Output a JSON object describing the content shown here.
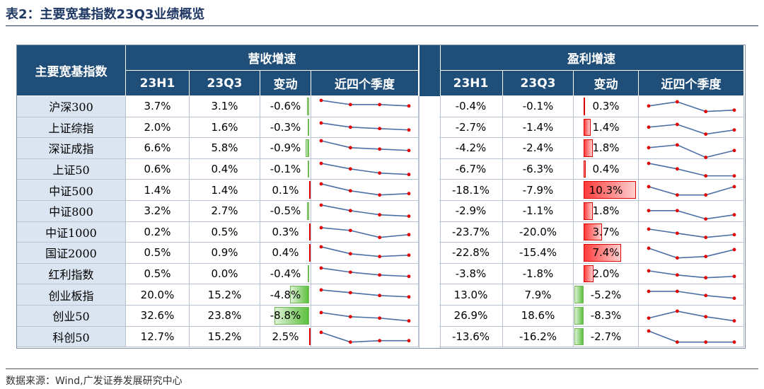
{
  "title": "表2：主要宽基指数23Q3业绩概览",
  "source": "数据来源：Wind,广发证券发展研究中心",
  "headers": {
    "index_col": "主要宽基指数",
    "rev_group": "营收增速",
    "profit_group": "盈利增速",
    "h1": "23H1",
    "q3": "23Q3",
    "change": "变动",
    "recent4": "近四个季度"
  },
  "rows": [
    {
      "name": "沪深300",
      "rev_h1": "3.7%",
      "rev_q3": "3.1%",
      "rev_chg": "-0.6%",
      "rev_chg_val": -0.6,
      "rev_trend": [
        3.2,
        2.9,
        2.9,
        2.8
      ],
      "pro_h1": "-0.4%",
      "pro_q3": "-0.1%",
      "pro_chg": "0.3%",
      "pro_chg_val": 0.3,
      "pro_trend": [
        2.8,
        3.1,
        2.4,
        2.5
      ]
    },
    {
      "name": "上证综指",
      "rev_h1": "2.0%",
      "rev_q3": "1.6%",
      "rev_chg": "-0.3%",
      "rev_chg_val": -0.3,
      "rev_trend": [
        3.1,
        2.8,
        2.7,
        2.6
      ],
      "pro_h1": "-2.7%",
      "pro_q3": "-1.4%",
      "pro_chg": "1.4%",
      "pro_chg_val": 1.4,
      "pro_trend": [
        2.8,
        3.0,
        2.3,
        2.6
      ]
    },
    {
      "name": "深证成指",
      "rev_h1": "6.6%",
      "rev_q3": "5.8%",
      "rev_chg": "-0.9%",
      "rev_chg_val": -0.9,
      "rev_trend": [
        3.3,
        2.8,
        2.7,
        2.6
      ],
      "pro_h1": "-4.2%",
      "pro_q3": "-2.4%",
      "pro_chg": "1.8%",
      "pro_chg_val": 1.8,
      "pro_trend": [
        2.8,
        3.0,
        2.1,
        2.6
      ]
    },
    {
      "name": "上证50",
      "rev_h1": "0.6%",
      "rev_q3": "0.4%",
      "rev_chg": "-0.1%",
      "rev_chg_val": -0.1,
      "rev_trend": [
        3.2,
        2.8,
        2.5,
        2.4
      ],
      "pro_h1": "-6.7%",
      "pro_q3": "-6.3%",
      "pro_chg": "0.4%",
      "pro_chg_val": 0.4,
      "pro_trend": [
        3.2,
        2.8,
        2.3,
        2.3
      ]
    },
    {
      "name": "中证500",
      "rev_h1": "1.4%",
      "rev_q3": "1.4%",
      "rev_chg": "0.1%",
      "rev_chg_val": 0.1,
      "rev_trend": [
        3.2,
        2.7,
        2.4,
        2.5
      ],
      "pro_h1": "-18.1%",
      "pro_q3": "-7.9%",
      "pro_chg": "10.3%",
      "pro_chg_val": 10.3,
      "pro_trend": [
        3.0,
        2.4,
        2.4,
        3.0
      ]
    },
    {
      "name": "中证800",
      "rev_h1": "3.2%",
      "rev_q3": "2.7%",
      "rev_chg": "-0.5%",
      "rev_chg_val": -0.5,
      "rev_trend": [
        3.2,
        2.8,
        2.5,
        2.4
      ],
      "pro_h1": "-2.9%",
      "pro_q3": "-1.1%",
      "pro_chg": "1.8%",
      "pro_chg_val": 1.8,
      "pro_trend": [
        2.8,
        2.8,
        2.2,
        2.5
      ]
    },
    {
      "name": "中证1000",
      "rev_h1": "0.2%",
      "rev_q3": "0.5%",
      "rev_chg": "0.3%",
      "rev_chg_val": 0.3,
      "rev_trend": [
        3.1,
        2.9,
        2.4,
        2.6
      ],
      "pro_h1": "-23.7%",
      "pro_q3": "-20.0%",
      "pro_chg": "3.7%",
      "pro_chg_val": 3.7,
      "pro_trend": [
        3.0,
        2.7,
        2.4,
        2.6
      ]
    },
    {
      "name": "国证2000",
      "rev_h1": "0.5%",
      "rev_q3": "0.9%",
      "rev_chg": "0.4%",
      "rev_chg_val": 0.4,
      "rev_trend": [
        3.2,
        2.7,
        2.5,
        2.6
      ],
      "pro_h1": "-22.8%",
      "pro_q3": "-15.4%",
      "pro_chg": "7.4%",
      "pro_chg_val": 7.4,
      "pro_trend": [
        3.1,
        2.4,
        2.5,
        3.0
      ]
    },
    {
      "name": "红利指数",
      "rev_h1": "0.5%",
      "rev_q3": "0.0%",
      "rev_chg": "-0.4%",
      "rev_chg_val": -0.4,
      "rev_trend": [
        3.2,
        2.9,
        2.7,
        2.6
      ],
      "pro_h1": "-3.8%",
      "pro_q3": "-1.8%",
      "pro_chg": "2.0%",
      "pro_chg_val": 2.0,
      "pro_trend": [
        3.0,
        2.7,
        2.5,
        2.6
      ]
    },
    {
      "name": "创业板指",
      "rev_h1": "20.0%",
      "rev_q3": "15.2%",
      "rev_chg": "-4.8%",
      "rev_chg_val": -4.8,
      "rev_trend": [
        3.1,
        2.9,
        2.7,
        2.6
      ],
      "pro_h1": "13.0%",
      "pro_q3": "7.9%",
      "pro_chg": "-5.2%",
      "pro_chg_val": -5.2,
      "pro_trend": [
        3.0,
        3.0,
        2.7,
        2.5
      ]
    },
    {
      "name": "创业50",
      "rev_h1": "32.6%",
      "rev_q3": "23.8%",
      "rev_chg": "-8.8%",
      "rev_chg_val": -8.8,
      "rev_trend": [
        3.0,
        2.7,
        2.6,
        2.4
      ],
      "pro_h1": "26.9%",
      "pro_q3": "18.6%",
      "pro_chg": "-8.3%",
      "pro_chg_val": -8.3,
      "pro_trend": [
        2.6,
        3.1,
        2.7,
        2.4
      ]
    },
    {
      "name": "科创50",
      "rev_h1": "12.7%",
      "rev_q3": "15.2%",
      "rev_chg": "2.5%",
      "rev_chg_val": 2.5,
      "rev_trend": [
        3.1,
        2.4,
        2.5,
        2.5
      ],
      "pro_h1": "-13.6%",
      "pro_q3": "-16.2%",
      "pro_chg": "-2.7%",
      "pro_chg_val": -2.7,
      "pro_trend": [
        3.2,
        2.4,
        2.4,
        2.4
      ]
    }
  ],
  "colors": {
    "header_bg": "#1f4e79",
    "name_bg": "#dbe5f1",
    "bar_pos": "#ff3b3b",
    "bar_neg": "#5bbf3c",
    "spark_line": "#4a6fa5",
    "spark_dot": "#e00000"
  }
}
